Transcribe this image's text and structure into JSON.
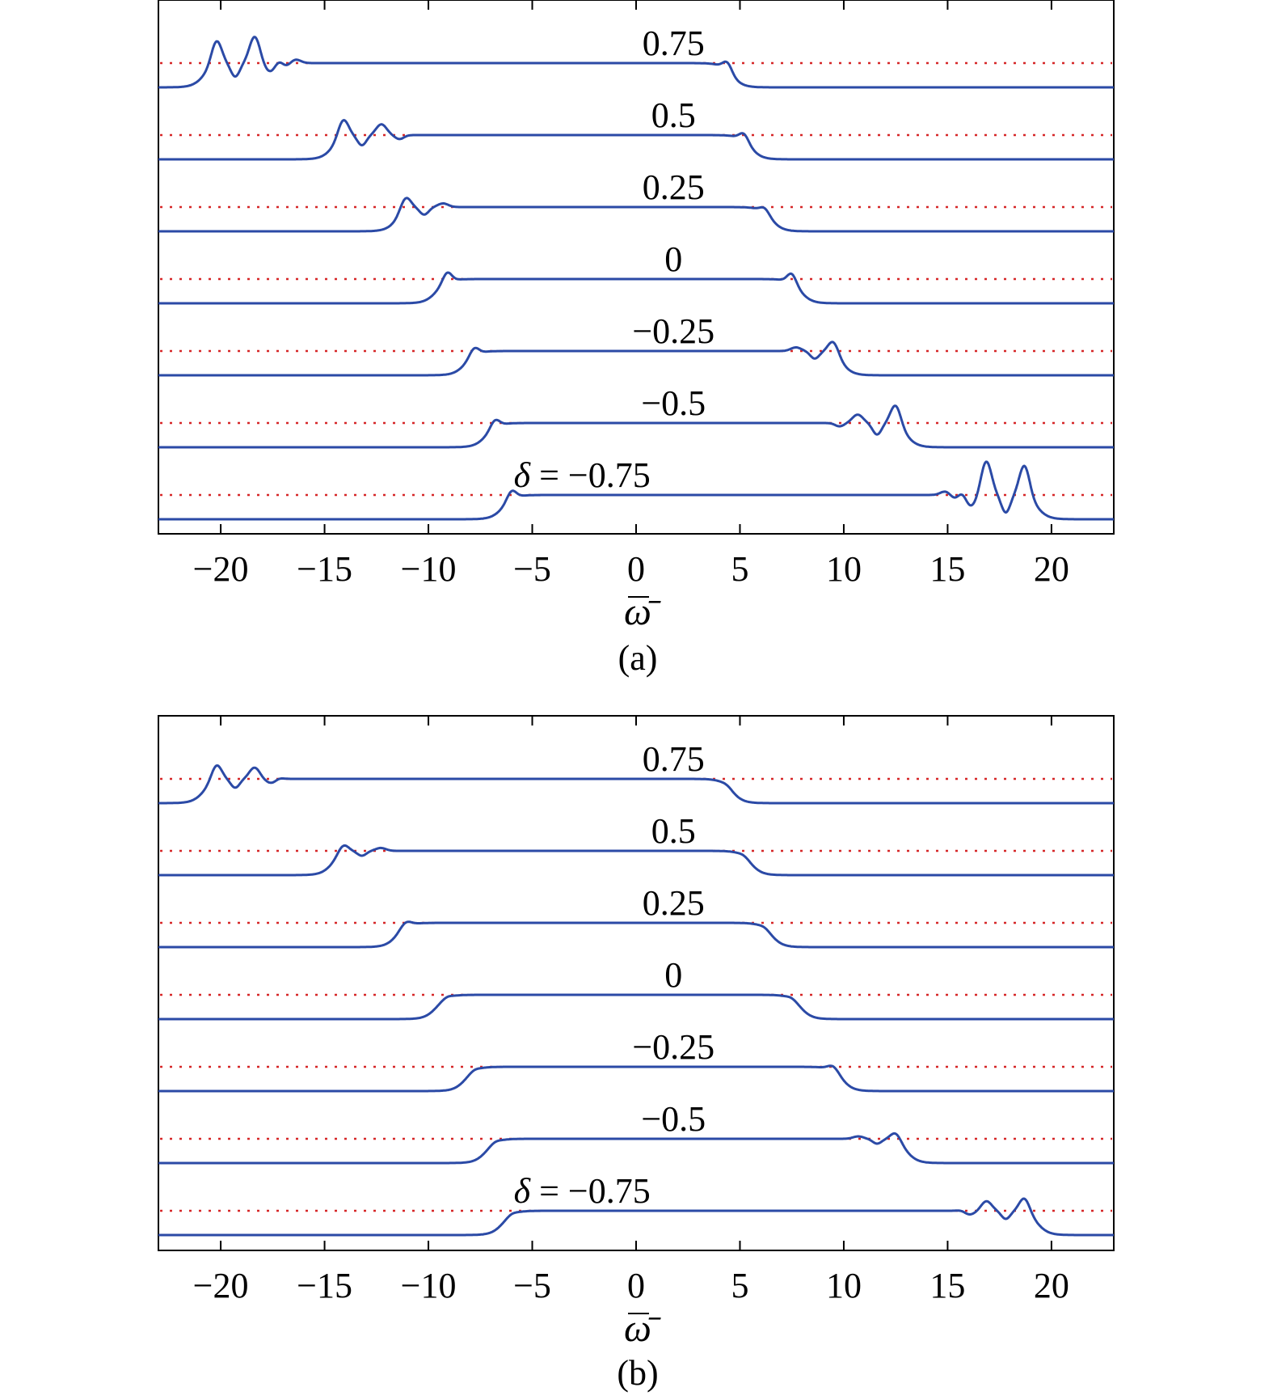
{
  "chart_data": [
    {
      "type": "line",
      "panel_label": "(a)",
      "xlabel": "ω̄",
      "ylabel": "",
      "xlim": [
        -23,
        23
      ],
      "xticks": [
        "−20",
        "−15",
        "−10",
        "−5",
        "0",
        "5",
        "10",
        "15",
        "20"
      ],
      "xtick_values": [
        -20,
        -15,
        -10,
        -5,
        0,
        5,
        10,
        15,
        20
      ],
      "grid": false,
      "line_color": "#2b4aa6",
      "baseline_color": "#d62728",
      "series": [
        {
          "label": "0.75",
          "delta": 0.75,
          "left_edge": -20.8,
          "right_edge": 4.6,
          "left_peak": -20.2,
          "right_peak": 4.4,
          "left_ripples": [
            1.0,
            0.75,
            0.35,
            0.25,
            0.15
          ],
          "right_ripples": [
            0.35
          ],
          "ripple_side": "left"
        },
        {
          "label": "0.5",
          "delta": 0.5,
          "left_edge": -14.6,
          "right_edge": 5.5,
          "left_peak": -14.1,
          "right_peak": 5.2,
          "left_ripples": [
            0.75,
            0.3,
            0.15
          ],
          "right_ripples": [
            0.3
          ],
          "ripple_side": "left"
        },
        {
          "label": "0.25",
          "delta": 0.25,
          "left_edge": -11.5,
          "right_edge": 6.5,
          "left_peak": -11.1,
          "right_peak": 6.2,
          "left_ripples": [
            0.55,
            0.15
          ],
          "right_ripples": [
            0.2
          ],
          "ripple_side": "left"
        },
        {
          "label": "0",
          "delta": 0,
          "left_edge": -9.6,
          "right_edge": 7.9,
          "left_peak": -9.1,
          "right_peak": 7.5,
          "left_ripples": [
            0.4
          ],
          "right_ripples": [
            0.4
          ],
          "ripple_side": "none"
        },
        {
          "label": "−0.25",
          "delta": -0.25,
          "left_edge": -8.2,
          "right_edge": 9.9,
          "left_peak": -7.8,
          "right_peak": 9.5,
          "left_ripples": [
            0.3
          ],
          "right_ripples": [
            0.55,
            0.15
          ],
          "ripple_side": "right"
        },
        {
          "label": "−0.5",
          "delta": -0.5,
          "left_edge": -7.2,
          "right_edge": 13.0,
          "left_peak": -6.8,
          "right_peak": 12.5,
          "left_ripples": [
            0.3
          ],
          "right_ripples": [
            0.85,
            0.25,
            0.1
          ],
          "ripple_side": "right"
        },
        {
          "label": "δ = −0.75",
          "delta": -0.75,
          "left_edge": -6.4,
          "right_edge": 19.3,
          "left_peak": -6.0,
          "right_peak": 18.7,
          "left_ripples": [
            0.35
          ],
          "right_ripples": [
            1.3,
            0.95,
            0.45,
            0.3,
            0.15
          ],
          "ripple_side": "right"
        }
      ]
    },
    {
      "type": "line",
      "panel_label": "(b)",
      "xlabel": "ω̄",
      "ylabel": "",
      "xlim": [
        -23,
        23
      ],
      "xticks": [
        "−20",
        "−15",
        "−10",
        "−5",
        "0",
        "5",
        "10",
        "15",
        "20"
      ],
      "xtick_values": [
        -20,
        -15,
        -10,
        -5,
        0,
        5,
        10,
        15,
        20
      ],
      "grid": false,
      "line_color": "#2b4aa6",
      "baseline_color": "#d62728",
      "series": [
        {
          "label": "0.75",
          "delta": 0.75,
          "left_edge": -20.8,
          "right_edge": 4.6,
          "left_peak": -20.2,
          "right_peak": 4.4,
          "left_ripples": [
            0.65,
            0.35,
            0.12,
            0.08
          ],
          "right_ripples": [
            0.05
          ],
          "ripple_side": "left"
        },
        {
          "label": "0.5",
          "delta": 0.5,
          "left_edge": -14.6,
          "right_edge": 5.5,
          "left_peak": -14.1,
          "right_peak": 5.2,
          "left_ripples": [
            0.35,
            0.12
          ],
          "right_ripples": [
            0.05
          ],
          "ripple_side": "left"
        },
        {
          "label": "0.25",
          "delta": 0.25,
          "left_edge": -11.5,
          "right_edge": 6.5,
          "left_peak": -11.1,
          "right_peak": 6.2,
          "left_ripples": [
            0.2
          ],
          "right_ripples": [
            0.05
          ],
          "ripple_side": "left"
        },
        {
          "label": "0",
          "delta": 0,
          "left_edge": -9.6,
          "right_edge": 7.9,
          "left_peak": -9.1,
          "right_peak": 7.5,
          "left_ripples": [
            0.05
          ],
          "right_ripples": [
            0.05
          ],
          "ripple_side": "none"
        },
        {
          "label": "−0.25",
          "delta": -0.25,
          "left_edge": -8.2,
          "right_edge": 9.9,
          "left_peak": -7.8,
          "right_peak": 9.5,
          "left_ripples": [
            0.05
          ],
          "right_ripples": [
            0.2
          ],
          "ripple_side": "right"
        },
        {
          "label": "−0.5",
          "delta": -0.5,
          "left_edge": -7.2,
          "right_edge": 13.0,
          "left_peak": -6.8,
          "right_peak": 12.5,
          "left_ripples": [
            0.05
          ],
          "right_ripples": [
            0.35,
            0.1
          ],
          "ripple_side": "right"
        },
        {
          "label": "δ = −0.75",
          "delta": -0.75,
          "left_edge": -6.4,
          "right_edge": 19.3,
          "left_peak": -6.0,
          "right_peak": 18.7,
          "left_ripples": [
            0.05
          ],
          "right_ripples": [
            0.6,
            0.3,
            0.1,
            0.05
          ],
          "ripple_side": "right"
        }
      ]
    }
  ]
}
